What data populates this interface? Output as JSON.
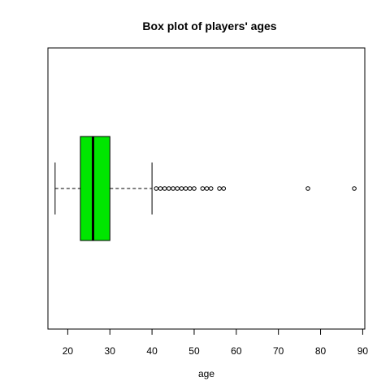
{
  "chart_data": {
    "type": "boxplot",
    "orientation": "horizontal",
    "title": "Box plot of players' ages",
    "xlabel": "age",
    "ylabel": "",
    "xlim": [
      15.3,
      90.5
    ],
    "xticks": [
      20,
      30,
      40,
      50,
      60,
      70,
      80,
      90
    ],
    "grid": false,
    "legend": "none",
    "box_color": "#00e600",
    "box": {
      "min": 17,
      "q1": 23,
      "median": 26,
      "q3": 30,
      "max": 40
    },
    "outliers": [
      41,
      42,
      43,
      44,
      45,
      46,
      47,
      48,
      49,
      50,
      52,
      53,
      54,
      56,
      57,
      77,
      88
    ]
  }
}
